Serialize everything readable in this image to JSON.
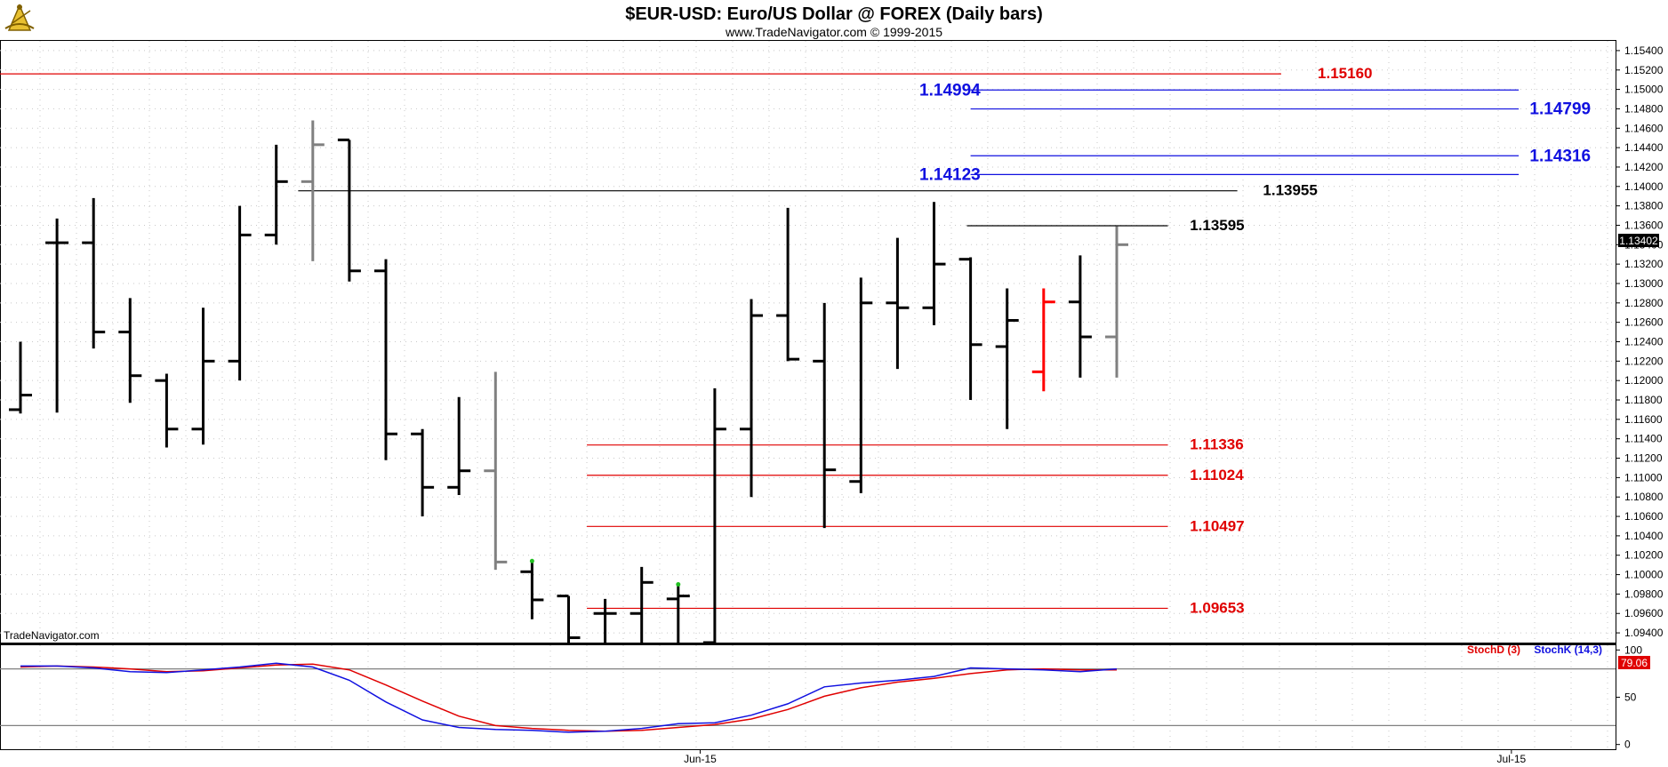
{
  "header": {
    "title": "$EUR-USD:  Euro/US Dollar @ FOREX  (Daily bars)",
    "subtitle": "www.TradeNavigator.com © 1999-2015",
    "watermark": "TradeNavigator.com",
    "logo": "sextant-logo-icon"
  },
  "chart_data": {
    "type": "ohlc",
    "price_axis": {
      "ylim": [
        1.093,
        1.155
      ],
      "ticks": [
        1.154,
        1.152,
        1.15,
        1.148,
        1.146,
        1.144,
        1.142,
        1.14,
        1.138,
        1.136,
        1.134,
        1.132,
        1.13,
        1.128,
        1.126,
        1.124,
        1.122,
        1.12,
        1.118,
        1.116,
        1.114,
        1.112,
        1.11,
        1.108,
        1.106,
        1.104,
        1.102,
        1.1,
        1.098,
        1.096,
        1.094
      ],
      "tick_labels": [
        "1.15400",
        "1.15200",
        "1.15000",
        "1.14800",
        "1.14600",
        "1.14400",
        "1.14200",
        "1.14000",
        "1.13800",
        "1.13600",
        "1.13400",
        "1.13200",
        "1.13000",
        "1.12800",
        "1.12600",
        "1.12400",
        "1.12200",
        "1.12000",
        "1.11800",
        "1.11600",
        "1.11400",
        "1.11200",
        "1.11000",
        "1.10800",
        "1.10600",
        "1.10400",
        "1.10200",
        "1.10000",
        "1.09800",
        "1.09600",
        "1.09400"
      ],
      "last_price_label": "1.13402",
      "last_price": 1.13402
    },
    "bar_colors": {
      "black": "#000000",
      "gray": "#808080",
      "red": "#ff0000"
    },
    "bars": [
      {
        "i": 0,
        "o": 1.117,
        "h": 1.124,
        "l": 1.1166,
        "c": 1.1185,
        "color": "black"
      },
      {
        "i": 1,
        "o": 1.1342,
        "h": 1.1367,
        "l": 1.1167,
        "c": 1.1342,
        "color": "black"
      },
      {
        "i": 2,
        "o": 1.1342,
        "h": 1.1388,
        "l": 1.1233,
        "c": 1.125,
        "color": "black"
      },
      {
        "i": 3,
        "o": 1.125,
        "h": 1.1285,
        "l": 1.1177,
        "c": 1.1205,
        "color": "black"
      },
      {
        "i": 4,
        "o": 1.12,
        "h": 1.1207,
        "l": 1.1131,
        "c": 1.115,
        "color": "black"
      },
      {
        "i": 5,
        "o": 1.115,
        "h": 1.1275,
        "l": 1.1134,
        "c": 1.122,
        "color": "black"
      },
      {
        "i": 6,
        "o": 1.122,
        "h": 1.138,
        "l": 1.12,
        "c": 1.135,
        "color": "black"
      },
      {
        "i": 7,
        "o": 1.135,
        "h": 1.1443,
        "l": 1.134,
        "c": 1.1405,
        "color": "black"
      },
      {
        "i": 8,
        "o": 1.1405,
        "h": 1.1468,
        "l": 1.1323,
        "c": 1.1443,
        "color": "gray"
      },
      {
        "i": 9,
        "o": 1.1448,
        "h": 1.1448,
        "l": 1.1302,
        "c": 1.1313,
        "color": "black"
      },
      {
        "i": 10,
        "o": 1.1313,
        "h": 1.1325,
        "l": 1.1118,
        "c": 1.1145,
        "color": "black"
      },
      {
        "i": 11,
        "o": 1.1145,
        "h": 1.115,
        "l": 1.106,
        "c": 1.109,
        "color": "black"
      },
      {
        "i": 12,
        "o": 1.109,
        "h": 1.1183,
        "l": 1.1082,
        "c": 1.1107,
        "color": "black"
      },
      {
        "i": 13,
        "o": 1.1107,
        "h": 1.1209,
        "l": 1.1005,
        "c": 1.1013,
        "color": "gray"
      },
      {
        "i": 14,
        "o": 1.1003,
        "h": 1.1013,
        "l": 1.0954,
        "c": 1.0974,
        "color": "black"
      },
      {
        "i": 15,
        "o": 1.0978,
        "h": 1.0978,
        "l": 1.093,
        "c": 1.0935,
        "color": "black"
      },
      {
        "i": 16,
        "o": 1.096,
        "h": 1.0975,
        "l": 1.093,
        "c": 1.096,
        "color": "black"
      },
      {
        "i": 17,
        "o": 1.096,
        "h": 1.1008,
        "l": 1.093,
        "c": 1.0992,
        "color": "black"
      },
      {
        "i": 18,
        "o": 1.0975,
        "h": 1.099,
        "l": 1.093,
        "c": 1.0978,
        "color": "black"
      },
      {
        "i": 19,
        "o": 1.093,
        "h": 1.1192,
        "l": 1.093,
        "c": 1.115,
        "color": "black"
      },
      {
        "i": 20,
        "o": 1.115,
        "h": 1.1284,
        "l": 1.108,
        "c": 1.1267,
        "color": "black"
      },
      {
        "i": 21,
        "o": 1.1267,
        "h": 1.1378,
        "l": 1.122,
        "c": 1.1222,
        "color": "black"
      },
      {
        "i": 22,
        "o": 1.122,
        "h": 1.128,
        "l": 1.1048,
        "c": 1.1108,
        "color": "black"
      },
      {
        "i": 23,
        "o": 1.1096,
        "h": 1.1306,
        "l": 1.1084,
        "c": 1.128,
        "color": "black"
      },
      {
        "i": 24,
        "o": 1.128,
        "h": 1.1347,
        "l": 1.1212,
        "c": 1.1275,
        "color": "black"
      },
      {
        "i": 25,
        "o": 1.1275,
        "h": 1.1384,
        "l": 1.1257,
        "c": 1.132,
        "color": "black"
      },
      {
        "i": 26,
        "o": 1.1325,
        "h": 1.1327,
        "l": 1.118,
        "c": 1.1237,
        "color": "black"
      },
      {
        "i": 27,
        "o": 1.1235,
        "h": 1.1295,
        "l": 1.115,
        "c": 1.1262,
        "color": "black"
      },
      {
        "i": 28,
        "o": 1.1209,
        "h": 1.1295,
        "l": 1.1189,
        "c": 1.1281,
        "color": "red"
      },
      {
        "i": 29,
        "o": 1.1281,
        "h": 1.1329,
        "l": 1.1203,
        "c": 1.1245,
        "color": "black"
      },
      {
        "i": 30,
        "o": 1.1245,
        "h": 1.1359,
        "l": 1.1203,
        "c": 1.134,
        "color": "gray"
      }
    ],
    "levels": [
      {
        "label": "1.15160",
        "value": 1.1516,
        "color": "#e00000",
        "x1_bar": -1,
        "x2_bar": 34.5,
        "label_bar": 35.5
      },
      {
        "label": "1.14994",
        "value": 1.14994,
        "color": "#1010e0",
        "x1_bar": 26,
        "x2_bar": 41,
        "label_bar": 24.6
      },
      {
        "label": "1.14799",
        "value": 1.14799,
        "color": "#1010e0",
        "x1_bar": 26,
        "x2_bar": 41,
        "label_bar": 41.3
      },
      {
        "label": "1.14316",
        "value": 1.14316,
        "color": "#1010e0",
        "x1_bar": 26,
        "x2_bar": 41,
        "label_bar": 41.3
      },
      {
        "label": "1.14123",
        "value": 1.14123,
        "color": "#1010e0",
        "x1_bar": 26,
        "x2_bar": 41,
        "label_bar": 24.6
      },
      {
        "label": "1.13955",
        "value": 1.13955,
        "color": "#000000",
        "x1_bar": 7.6,
        "x2_bar": 33.3,
        "label_bar": 34.0
      },
      {
        "label": "1.13595",
        "value": 1.13595,
        "color": "#000000",
        "x1_bar": 25.9,
        "x2_bar": 31.4,
        "label_bar": 32.0
      },
      {
        "label": "1.11336",
        "value": 1.11336,
        "color": "#e00000",
        "x1_bar": 15.5,
        "x2_bar": 31.4,
        "label_bar": 32.0
      },
      {
        "label": "1.11024",
        "value": 1.11024,
        "color": "#e00000",
        "x1_bar": 15.5,
        "x2_bar": 31.4,
        "label_bar": 32.0
      },
      {
        "label": "1.10497",
        "value": 1.10497,
        "color": "#e00000",
        "x1_bar": 15.5,
        "x2_bar": 31.4,
        "label_bar": 32.0
      },
      {
        "label": "1.09653",
        "value": 1.09653,
        "color": "#e00000",
        "x1_bar": 15.5,
        "x2_bar": 31.4,
        "label_bar": 32.0
      }
    ],
    "green_dots": [
      {
        "bar": 14,
        "value": 1.1014
      },
      {
        "bar": 18,
        "value": 1.099
      }
    ],
    "stochastic": {
      "ylim": [
        -5,
        105
      ],
      "ticks": [
        100,
        50,
        0
      ],
      "tick_labels": [
        "100",
        "50",
        "0"
      ],
      "overbought": 80,
      "oversold": 20,
      "legend": [
        {
          "name": "StochD (3)",
          "color": "#e00000"
        },
        {
          "name": "StochK (14,3)",
          "color": "#1010e0"
        }
      ],
      "last_value_label": "79.06",
      "stochK": [
        83,
        83,
        81,
        77,
        76,
        79,
        82,
        86,
        82,
        68,
        45,
        26,
        18,
        16,
        15,
        13,
        14,
        17,
        22,
        23,
        31,
        43,
        61,
        65,
        68,
        72,
        81,
        80,
        79,
        77,
        80
      ],
      "stochD": [
        82,
        83,
        82,
        80,
        77,
        78,
        81,
        84,
        85,
        79,
        63,
        46,
        30,
        20,
        17,
        15,
        14,
        15,
        18,
        21,
        27,
        37,
        51,
        60,
        66,
        70,
        75,
        79,
        80,
        79,
        79
      ]
    },
    "x_axis": {
      "labels": [
        {
          "label": "Jun-15",
          "bar": 18.6
        },
        {
          "label": "Jul-15",
          "bar": 40.8
        }
      ]
    }
  }
}
